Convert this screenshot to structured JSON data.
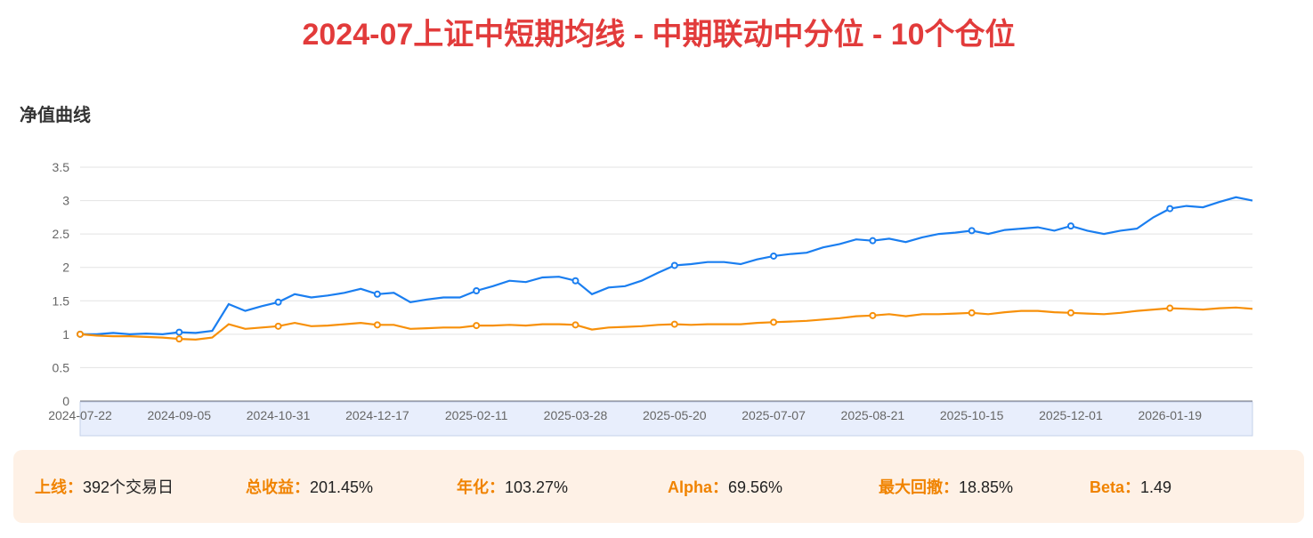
{
  "chart_data": {
    "type": "line",
    "title": "2024-07上证中短期均线 - 中期联动中分位 - 10个仓位",
    "subtitle": "净值曲线",
    "categories": [
      "2024-07-22",
      null,
      null,
      null,
      null,
      null,
      "2024-09-05",
      null,
      null,
      null,
      null,
      null,
      "2024-10-31",
      null,
      null,
      null,
      null,
      null,
      "2024-12-17",
      null,
      null,
      null,
      null,
      null,
      "2025-02-11",
      null,
      null,
      null,
      null,
      null,
      "2025-03-28",
      null,
      null,
      null,
      null,
      null,
      "2025-05-20",
      null,
      null,
      null,
      null,
      null,
      "2025-07-07",
      null,
      null,
      null,
      null,
      null,
      "2025-08-21",
      null,
      null,
      null,
      null,
      null,
      "2025-10-15",
      null,
      null,
      null,
      null,
      null,
      "2025-12-01",
      null,
      null,
      null,
      null,
      null,
      "2026-01-19",
      null,
      null,
      null,
      null,
      null
    ],
    "series": [
      {
        "color": "#1a7ef0",
        "values": [
          1.0,
          1.0,
          1.02,
          1.0,
          1.01,
          1.0,
          1.03,
          1.02,
          1.05,
          1.45,
          1.35,
          1.42,
          1.48,
          1.6,
          1.55,
          1.58,
          1.62,
          1.68,
          1.6,
          1.62,
          1.48,
          1.52,
          1.55,
          1.55,
          1.65,
          1.72,
          1.8,
          1.78,
          1.85,
          1.86,
          1.8,
          1.6,
          1.7,
          1.72,
          1.8,
          1.92,
          2.03,
          2.05,
          2.08,
          2.08,
          2.05,
          2.12,
          2.17,
          2.2,
          2.22,
          2.3,
          2.35,
          2.42,
          2.4,
          2.43,
          2.38,
          2.45,
          2.5,
          2.52,
          2.55,
          2.5,
          2.56,
          2.58,
          2.6,
          2.55,
          2.62,
          2.55,
          2.5,
          2.55,
          2.58,
          2.75,
          2.88,
          2.92,
          2.9,
          2.98,
          3.05,
          3.0
        ]
      },
      {
        "color": "#f7900a",
        "values": [
          1.0,
          0.98,
          0.97,
          0.97,
          0.96,
          0.95,
          0.93,
          0.92,
          0.95,
          1.15,
          1.08,
          1.1,
          1.12,
          1.17,
          1.12,
          1.13,
          1.15,
          1.17,
          1.14,
          1.14,
          1.08,
          1.09,
          1.1,
          1.1,
          1.13,
          1.13,
          1.14,
          1.13,
          1.15,
          1.15,
          1.14,
          1.07,
          1.1,
          1.11,
          1.12,
          1.14,
          1.15,
          1.14,
          1.15,
          1.15,
          1.15,
          1.17,
          1.18,
          1.19,
          1.2,
          1.22,
          1.24,
          1.27,
          1.28,
          1.3,
          1.27,
          1.3,
          1.3,
          1.31,
          1.32,
          1.3,
          1.33,
          1.35,
          1.35,
          1.33,
          1.32,
          1.31,
          1.3,
          1.32,
          1.35,
          1.37,
          1.39,
          1.38,
          1.37,
          1.39,
          1.4,
          1.38
        ]
      }
    ],
    "ylim": [
      0,
      3.5
    ],
    "yticks": [
      0,
      0.5,
      1,
      1.5,
      2,
      2.5,
      3,
      3.5
    ],
    "grid": true
  },
  "stats": [
    {
      "label": "上线：",
      "value": "392个交易日"
    },
    {
      "label": "总收益：",
      "value": "201.45%"
    },
    {
      "label": "年化：",
      "value": "103.27%"
    },
    {
      "label": "Alpha：",
      "value": "69.56%"
    },
    {
      "label": "最大回撤：",
      "value": "18.85%"
    },
    {
      "label": "Beta：",
      "value": "1.49"
    }
  ]
}
